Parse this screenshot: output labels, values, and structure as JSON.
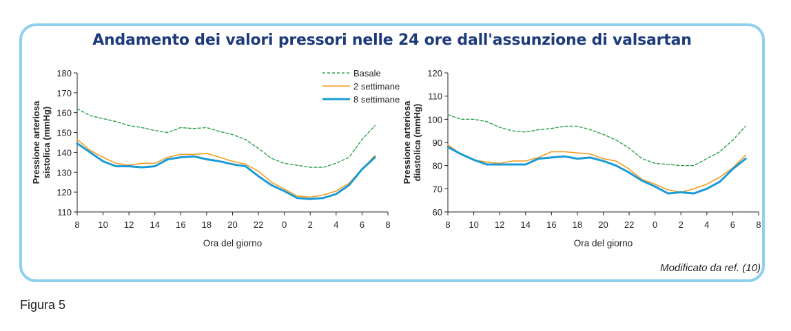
{
  "title": "Andamento dei valori pressori nelle 24 ore dall'assunzione di valsartan",
  "source_note": "Modificato da ref. (10)",
  "figure_label": "Figura 5",
  "colors": {
    "basale": "#2aa04a",
    "two_weeks": "#f39c1f",
    "eight_weeks": "#1a9ad6",
    "frame": "#8fd0ee",
    "title": "#1d3a7a"
  },
  "legend": {
    "placement": "top-right",
    "items": [
      "Basale",
      "2 settimane",
      "8 settimane"
    ]
  },
  "chart_data": [
    {
      "type": "line",
      "xlabel": "Ora del giorno",
      "ylabel": [
        "Pressione arteriosa",
        "sistolica (mmHg)"
      ],
      "xticks": [
        "8",
        "10",
        "12",
        "14",
        "16",
        "18",
        "20",
        "22",
        "0",
        "2",
        "4",
        "6",
        "8"
      ],
      "yticks": [
        110,
        120,
        130,
        140,
        150,
        160,
        170,
        180
      ],
      "ylim": [
        110,
        180
      ],
      "x": [
        0,
        1,
        2,
        3,
        4,
        5,
        6,
        7,
        8,
        9,
        10,
        11,
        12,
        13,
        14,
        15,
        16,
        17,
        18,
        19,
        20,
        21,
        22,
        23
      ],
      "series": [
        {
          "name": "Basale",
          "style": "dashed",
          "values": [
            162,
            158.5,
            157,
            155.5,
            153.5,
            152.5,
            151,
            150,
            152.5,
            152,
            152.5,
            150.5,
            149,
            146.5,
            142,
            137,
            134.5,
            133.5,
            132.5,
            132.5,
            134.5,
            137.5,
            146.5,
            153.5
          ]
        },
        {
          "name": "2 settimane",
          "style": "solid",
          "values": [
            146.5,
            141,
            137.5,
            134.5,
            133.5,
            134.5,
            134.5,
            137.5,
            139,
            139,
            139.5,
            137.5,
            135.5,
            134,
            130.5,
            125,
            121.5,
            118,
            117.5,
            118.5,
            120.5,
            124.5,
            131.5,
            138.5
          ]
        },
        {
          "name": "8 settimane",
          "style": "thick",
          "values": [
            144.5,
            140,
            135.5,
            133,
            133,
            132.5,
            133,
            136.5,
            137.5,
            138,
            136.5,
            135.5,
            134,
            133,
            128,
            123.5,
            120.5,
            117,
            116.5,
            117,
            119,
            123.5,
            131.5,
            137.5
          ]
        }
      ]
    },
    {
      "type": "line",
      "xlabel": "Ora del giorno",
      "ylabel": [
        "Pressione arteriosa",
        "diastolica (mmHg)"
      ],
      "xticks": [
        "8",
        "10",
        "12",
        "14",
        "16",
        "18",
        "20",
        "22",
        "0",
        "2",
        "4",
        "6",
        "8"
      ],
      "yticks": [
        60,
        70,
        80,
        90,
        100,
        110,
        120
      ],
      "ylim": [
        60,
        120
      ],
      "x": [
        0,
        1,
        2,
        3,
        4,
        5,
        6,
        7,
        8,
        9,
        10,
        11,
        12,
        13,
        14,
        15,
        16,
        17,
        18,
        19,
        20,
        21,
        22,
        23
      ],
      "series": [
        {
          "name": "Basale",
          "style": "dashed",
          "values": [
            102,
            100,
            100,
            99,
            96.5,
            95,
            94.5,
            95.5,
            96,
            97,
            97,
            95.5,
            93.5,
            91,
            87.5,
            83,
            81,
            80.5,
            80,
            80,
            83,
            86,
            91,
            97
          ]
        },
        {
          "name": "2 settimane",
          "style": "solid",
          "values": [
            89,
            85,
            82.5,
            81.5,
            81,
            82,
            82,
            83.5,
            86,
            86,
            85.5,
            85,
            83,
            82,
            78.5,
            74,
            72,
            69.5,
            68.5,
            70,
            72,
            75,
            79,
            84.5
          ]
        },
        {
          "name": "8 settimane",
          "style": "thick",
          "values": [
            88,
            85,
            82.5,
            80.5,
            80.5,
            80.5,
            80.5,
            83,
            83.5,
            84,
            83,
            83.5,
            82,
            80,
            77,
            73.5,
            71,
            68,
            68.5,
            68,
            70,
            73,
            78.5,
            83
          ]
        }
      ]
    }
  ]
}
